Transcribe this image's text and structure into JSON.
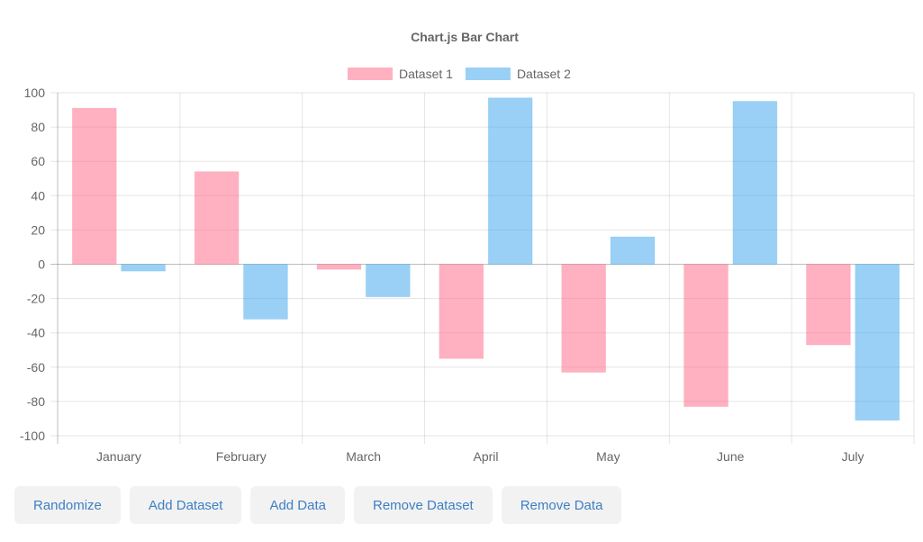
{
  "chart_data": {
    "type": "bar",
    "title": "Chart.js Bar Chart",
    "categories": [
      "January",
      "February",
      "March",
      "April",
      "May",
      "June",
      "July"
    ],
    "series": [
      {
        "name": "Dataset 1",
        "color": "#ff6384",
        "values": [
          91,
          54,
          -3,
          -55,
          -63,
          -83,
          -47
        ]
      },
      {
        "name": "Dataset 2",
        "color": "#36a2eb",
        "values": [
          -4,
          -32,
          -19,
          97,
          16,
          95,
          -91
        ]
      }
    ],
    "ylim": [
      -100,
      100
    ],
    "yticks": [
      100,
      80,
      60,
      40,
      20,
      0,
      -20,
      -40,
      -60,
      -80,
      -100
    ],
    "legend_position": "top",
    "grid": true
  },
  "buttons": {
    "randomize": "Randomize",
    "add_dataset": "Add Dataset",
    "add_data": "Add Data",
    "remove_dataset": "Remove Dataset",
    "remove_data": "Remove Data"
  }
}
